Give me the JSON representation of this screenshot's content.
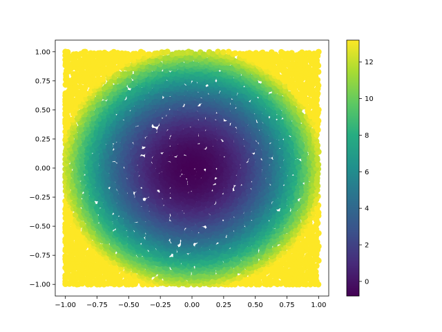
{
  "chart_data": {
    "type": "scatter",
    "title": "",
    "xlabel": "",
    "ylabel": "",
    "xlim": [
      -1.08,
      1.08
    ],
    "ylim": [
      -1.1,
      1.1
    ],
    "x_ticks": [
      "−1.00",
      "−0.75",
      "−0.50",
      "−0.25",
      "0.00",
      "0.25",
      "0.50",
      "0.75",
      "1.00"
    ],
    "x_tick_values": [
      -1.0,
      -0.75,
      -0.5,
      -0.25,
      0.0,
      0.25,
      0.5,
      0.75,
      1.0
    ],
    "y_ticks": [
      "−1.00",
      "−0.75",
      "−0.50",
      "−0.25",
      "0.00",
      "0.25",
      "0.50",
      "0.75",
      "1.00"
    ],
    "y_tick_values": [
      -1.0,
      -0.75,
      -0.5,
      -0.25,
      0.0,
      0.25,
      0.5,
      0.75,
      1.0
    ],
    "grid": false,
    "colormap": "viridis",
    "color_value": "color ≈ 13·(x² + y²) − 0.8 (approximate read-off)",
    "colorbar": {
      "range": [
        -0.8,
        13.2
      ],
      "ticks": [
        "0",
        "2",
        "4",
        "6",
        "8",
        "10",
        "12"
      ],
      "tick_values": [
        0,
        2,
        4,
        6,
        8,
        10,
        12
      ]
    },
    "point_domain": {
      "x": [
        -1.0,
        1.0
      ],
      "y": [
        -1.0,
        1.0
      ]
    },
    "point_spacing": 0.028
  }
}
